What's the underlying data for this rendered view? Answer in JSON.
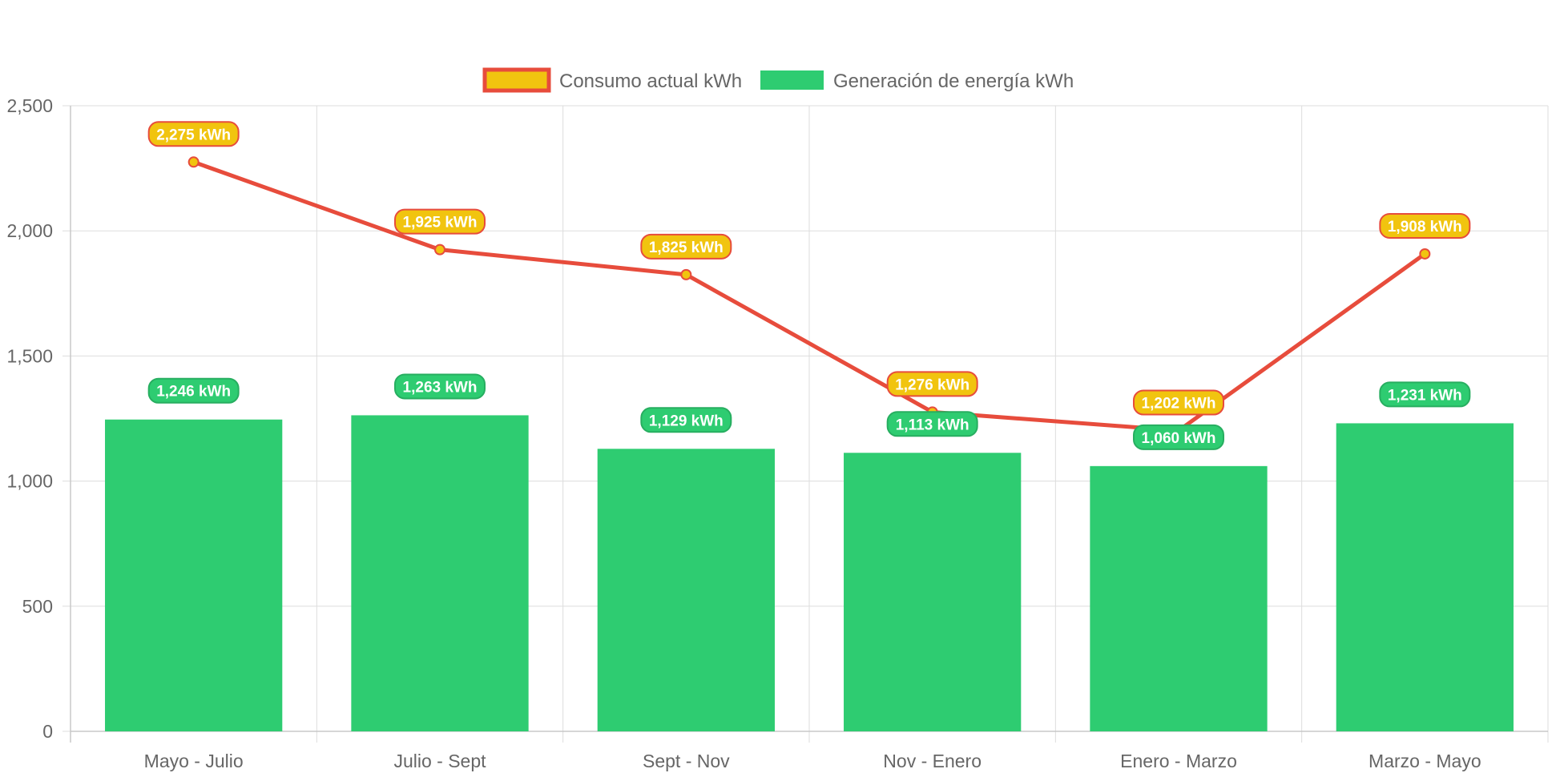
{
  "chart_data": {
    "type": "bar",
    "categories": [
      "Mayo - Julio",
      "Julio - Sept",
      "Sept - Nov",
      "Nov - Enero",
      "Enero - Marzo",
      "Marzo - Mayo"
    ],
    "series": [
      {
        "name": "Consumo actual kWh",
        "type": "line",
        "values": [
          2275,
          1925,
          1825,
          1276,
          1202,
          1908
        ],
        "labels": [
          "2,275 kWh",
          "1,925 kWh",
          "1,825 kWh",
          "1,276 kWh",
          "1,202 kWh",
          "1,908 kWh"
        ],
        "color": "#e74c3c",
        "fill": "#f1c40f"
      },
      {
        "name": "Generación de energía kWh",
        "type": "bar",
        "values": [
          1246,
          1263,
          1129,
          1113,
          1060,
          1231
        ],
        "labels": [
          "1,246 kWh",
          "1,263 kWh",
          "1,129 kWh",
          "1,113 kWh",
          "1,060 kWh",
          "1,231 kWh"
        ],
        "color": "#2ecc71"
      }
    ],
    "ylim": [
      0,
      2500
    ],
    "yticks": [
      0,
      500,
      1000,
      1500,
      2000,
      2500
    ],
    "ytick_labels": [
      "0",
      "500",
      "1,000",
      "1,500",
      "2,000",
      "2,500"
    ],
    "grid": true,
    "legend": "top-center"
  }
}
